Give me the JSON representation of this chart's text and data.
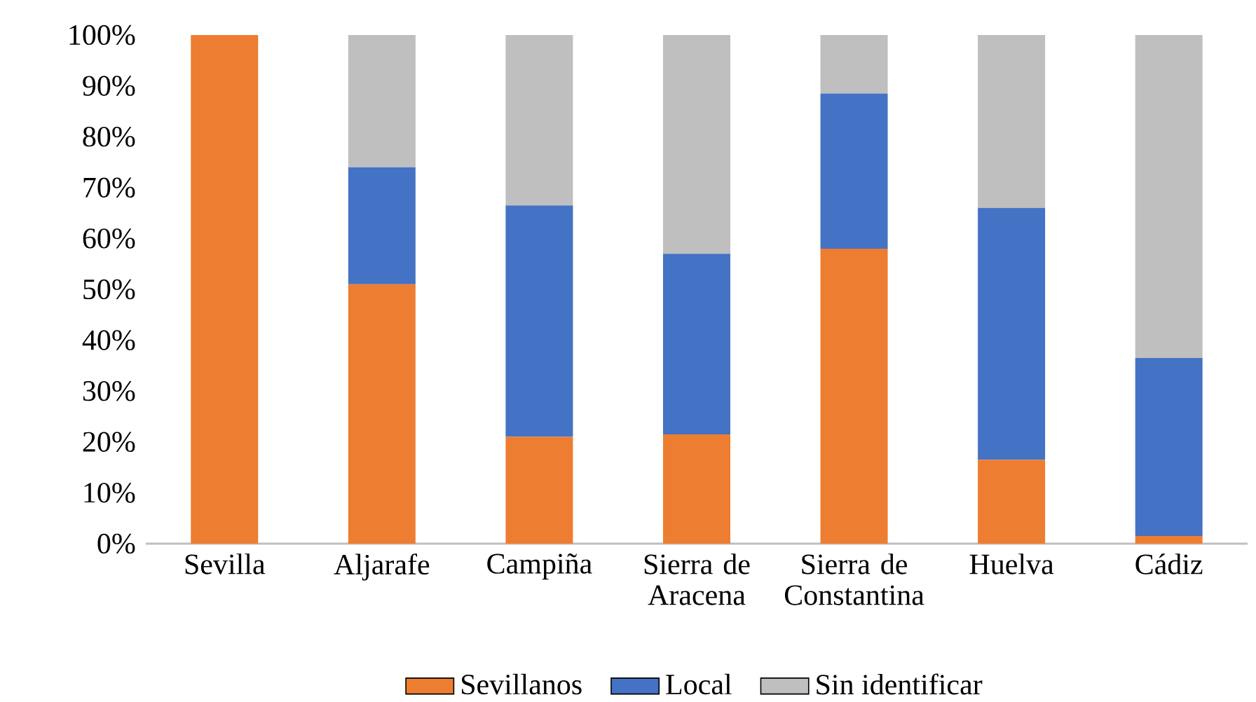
{
  "chart_data": {
    "type": "bar",
    "stacked": true,
    "categories": [
      "Sevilla",
      "Aljarafe",
      "Campiña",
      "Sierra de Aracena",
      "Sierra de Constantina",
      "Huelva",
      "Cádiz"
    ],
    "series": [
      {
        "name": "Sevillanos",
        "color": "#ed7d31",
        "values": [
          100,
          51,
          21,
          21.5,
          58,
          16.5,
          1.5
        ]
      },
      {
        "name": "Local",
        "color": "#4472c4",
        "values": [
          0,
          23,
          45.5,
          35.5,
          30.5,
          49.5,
          35
        ]
      },
      {
        "name": "Sin identificar",
        "color": "#bfbfbf",
        "values": [
          0,
          26,
          33.5,
          43,
          11.5,
          34,
          63.5
        ]
      }
    ],
    "ylim": [
      0,
      100
    ],
    "yticks": [
      {
        "value": 0,
        "label": "0%"
      },
      {
        "value": 10,
        "label": "10%"
      },
      {
        "value": 20,
        "label": "20%"
      },
      {
        "value": 30,
        "label": "30%"
      },
      {
        "value": 40,
        "label": "40%"
      },
      {
        "value": 50,
        "label": "50%"
      },
      {
        "value": 60,
        "label": "60%"
      },
      {
        "value": 70,
        "label": "70%"
      },
      {
        "value": 80,
        "label": "80%"
      },
      {
        "value": 90,
        "label": "90%"
      },
      {
        "value": 100,
        "label": "100%"
      }
    ],
    "grid": false,
    "legend": "bottom"
  }
}
